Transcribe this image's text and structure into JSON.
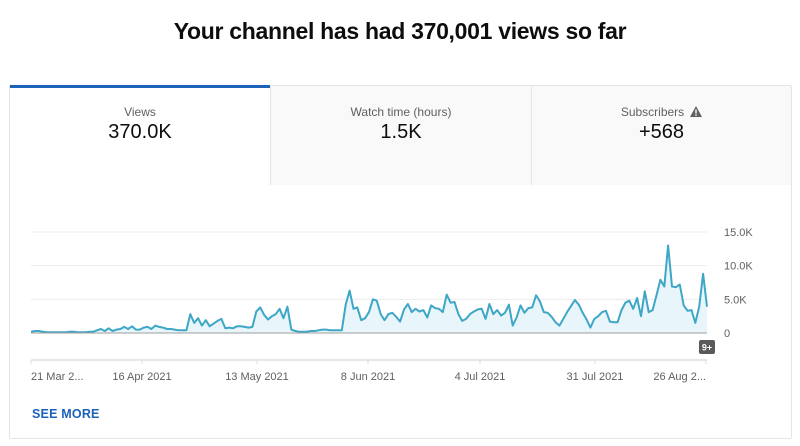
{
  "headline": "Your channel has had 370,001 views so far",
  "tabs": [
    {
      "label": "Views",
      "value": "370.0K",
      "active": true
    },
    {
      "label": "Watch time (hours)",
      "value": "1.5K",
      "active": false
    },
    {
      "label": "Subscribers",
      "value": "+568",
      "active": false,
      "icon": "warning-icon"
    }
  ],
  "see_more_label": "SEE MORE",
  "badge_label": "9+",
  "colors": {
    "accent": "#1c62b9",
    "line": "#3ea6c6",
    "fill": "#e8f5fa",
    "tab_inactive_bg": "#f9f9f9",
    "grid": "#ececec"
  },
  "chart_data": {
    "type": "area",
    "title": "Views",
    "xlabel": "",
    "ylabel": "",
    "x_tick_labels": [
      "21 Mar 2...",
      "16 Apr 2021",
      "13 May 2021",
      "8 Jun 2021",
      "4 Jul 2021",
      "31 Jul 2021",
      "26 Aug 2..."
    ],
    "y_tick_labels": [
      "0",
      "5.0K",
      "10.0K",
      "15.0K"
    ],
    "ylim": [
      0,
      15000
    ],
    "grid": true,
    "legend": "none",
    "y_axis_position": "right",
    "x_start": "21 Mar 2021",
    "x_end": "27 Aug 2021",
    "series": [
      {
        "name": "Views",
        "unit": "thousands",
        "values": [
          0.2,
          0.3,
          0.3,
          0.2,
          0.1,
          0.1,
          0.1,
          0.1,
          0.1,
          0.1,
          0.2,
          0.2,
          0.1,
          0.1,
          0.1,
          0.2,
          0.2,
          0.4,
          0.6,
          0.3,
          0.7,
          0.3,
          0.5,
          0.6,
          0.9,
          0.6,
          1.0,
          0.5,
          0.5,
          0.8,
          0.9,
          0.6,
          1.1,
          0.9,
          0.8,
          0.6,
          0.6,
          0.5,
          0.4,
          0.4,
          0.4,
          2.8,
          1.5,
          2.2,
          1.1,
          1.9,
          1.0,
          1.4,
          1.8,
          2.1,
          0.7,
          0.8,
          0.7,
          1.0,
          1.0,
          0.9,
          0.8,
          0.9,
          3.2,
          3.8,
          2.7,
          2.0,
          2.5,
          2.8,
          3.6,
          2.2,
          3.9,
          0.5,
          0.3,
          0.2,
          0.2,
          0.2,
          0.3,
          0.3,
          0.4,
          0.5,
          0.5,
          0.4,
          0.4,
          0.4,
          0.4,
          4.2,
          6.3,
          3.6,
          3.8,
          1.9,
          2.2,
          3.1,
          5.0,
          4.8,
          2.8,
          1.9,
          2.8,
          3.0,
          2.4,
          1.7,
          3.5,
          4.3,
          3.1,
          3.6,
          3.2,
          3.4,
          2.3,
          4.1,
          3.7,
          3.6,
          3.1,
          5.7,
          4.5,
          4.6,
          2.8,
          1.8,
          2.1,
          2.8,
          3.2,
          3.5,
          3.6,
          2.1,
          4.3,
          2.8,
          3.4,
          2.6,
          3.0,
          4.2,
          1.1,
          2.3,
          4.1,
          3.0,
          3.7,
          3.8,
          5.6,
          4.7,
          3.1,
          3.0,
          2.4,
          1.6,
          1.1,
          2.1,
          3.1,
          4.0,
          4.9,
          4.2,
          3.0,
          2.0,
          0.8,
          2.1,
          2.5,
          3.1,
          3.3,
          1.7,
          1.6,
          1.6,
          3.4,
          4.5,
          4.8,
          3.6,
          5.2,
          2.5,
          6.2,
          3.1,
          3.4,
          5.6,
          7.9,
          6.9,
          13.0,
          6.9,
          6.8,
          7.2,
          4.1,
          3.3,
          3.4,
          1.5,
          3.9,
          8.8,
          3.9
        ]
      }
    ]
  }
}
